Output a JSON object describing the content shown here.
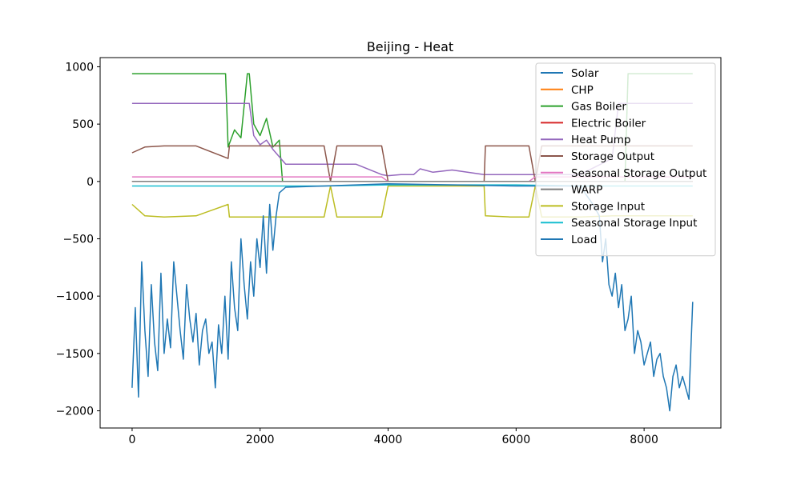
{
  "chart_data": {
    "type": "line",
    "title": "Beijing - Heat",
    "xlabel": "",
    "ylabel": "",
    "xlim": [
      -500,
      9200
    ],
    "ylim": [
      -2150,
      1080
    ],
    "xticks": [
      0,
      2000,
      4000,
      6000,
      8000
    ],
    "xtick_labels": [
      "0",
      "2000",
      "4000",
      "6000",
      "8000"
    ],
    "yticks": [
      1000,
      500,
      0,
      -500,
      -1000,
      -1500,
      -2000
    ],
    "ytick_labels": [
      "1000",
      "500",
      "0",
      "−500",
      "−1000",
      "−1500",
      "−2000"
    ],
    "grid": false,
    "legend_position": "top-right",
    "series": [
      {
        "name": "Solar",
        "color": "#1f77b4",
        "x": [
          0,
          8760
        ],
        "y": [
          0,
          0
        ]
      },
      {
        "name": "CHP",
        "color": "#ff7f0e",
        "x": [
          0,
          8760
        ],
        "y": [
          0,
          0
        ]
      },
      {
        "name": "Gas Boiler",
        "color": "#2ca02c",
        "x": [
          0,
          100,
          200,
          300,
          400,
          500,
          600,
          700,
          800,
          900,
          1000,
          1100,
          1200,
          1300,
          1400,
          1460,
          1500,
          1600,
          1700,
          1800,
          1830,
          1900,
          2000,
          2100,
          2200,
          2300,
          2350,
          7700,
          7750,
          7800,
          7900,
          8000,
          8100,
          8200,
          8300,
          8400,
          8500,
          8600,
          8700,
          8760
        ],
        "y": [
          940,
          940,
          940,
          940,
          940,
          940,
          940,
          940,
          940,
          940,
          940,
          940,
          940,
          940,
          940,
          940,
          300,
          450,
          380,
          940,
          940,
          500,
          400,
          550,
          300,
          360,
          0,
          0,
          940,
          940,
          940,
          940,
          940,
          940,
          940,
          940,
          940,
          940,
          940,
          940
        ]
      },
      {
        "name": "Electric Boiler",
        "color": "#d62728",
        "x": [
          0,
          8760
        ],
        "y": [
          0,
          0
        ]
      },
      {
        "name": "Heat Pump",
        "color": "#9467bd",
        "x": [
          0,
          100,
          200,
          300,
          400,
          500,
          600,
          700,
          800,
          900,
          1000,
          1100,
          1200,
          1300,
          1400,
          1500,
          1600,
          1700,
          1830,
          1900,
          2000,
          2100,
          2200,
          2400,
          3000,
          3500,
          3900,
          4000,
          4200,
          4400,
          4500,
          4700,
          5000,
          5500,
          6000,
          6500,
          7000,
          7500,
          7600,
          7700,
          7800,
          7900,
          8000,
          8100,
          8200,
          8300,
          8400,
          8500,
          8600,
          8700,
          8760
        ],
        "y": [
          680,
          680,
          680,
          680,
          680,
          680,
          680,
          680,
          680,
          680,
          680,
          680,
          680,
          680,
          680,
          680,
          680,
          680,
          680,
          400,
          320,
          360,
          280,
          150,
          150,
          150,
          60,
          50,
          60,
          60,
          110,
          80,
          100,
          60,
          60,
          60,
          60,
          200,
          680,
          680,
          680,
          680,
          680,
          680,
          680,
          680,
          680,
          680,
          680,
          680,
          680
        ]
      },
      {
        "name": "Storage Output",
        "color": "#8c564b",
        "x": [
          0,
          200,
          500,
          1000,
          1500,
          1520,
          2000,
          2500,
          3000,
          3100,
          3200,
          3300,
          3900,
          4000,
          4500,
          5500,
          5520,
          5900,
          6000,
          6200,
          6300,
          6400,
          7000,
          7500,
          8000,
          8500,
          8760
        ],
        "y": [
          250,
          300,
          310,
          310,
          200,
          310,
          310,
          310,
          310,
          0,
          310,
          310,
          310,
          0,
          0,
          0,
          310,
          310,
          310,
          310,
          0,
          310,
          310,
          310,
          310,
          310,
          310
        ]
      },
      {
        "name": "Seasonal Storage Output",
        "color": "#e377c2",
        "x": [
          0,
          1000,
          2000,
          3000,
          3900,
          4000,
          6200,
          6300,
          7000,
          8000,
          8760
        ],
        "y": [
          40,
          40,
          40,
          40,
          40,
          0,
          0,
          40,
          40,
          40,
          40
        ]
      },
      {
        "name": "WARP",
        "color": "#7f7f7f",
        "x": [
          0,
          8760
        ],
        "y": [
          0,
          0
        ]
      },
      {
        "name": "Storage Input",
        "color": "#bcbd22",
        "x": [
          0,
          200,
          500,
          1000,
          1500,
          1520,
          2000,
          2500,
          3000,
          3100,
          3200,
          3300,
          3900,
          4000,
          4500,
          5500,
          5520,
          5900,
          6000,
          6200,
          6300,
          6400,
          7000,
          7500,
          8000,
          8500,
          8760
        ],
        "y": [
          -200,
          -300,
          -310,
          -300,
          -200,
          -310,
          -310,
          -310,
          -310,
          -40,
          -310,
          -310,
          -310,
          -40,
          -40,
          -40,
          -300,
          -310,
          -310,
          -310,
          -40,
          -310,
          -310,
          -300,
          -300,
          -300,
          -300
        ]
      },
      {
        "name": "Seasonal Storage Input",
        "color": "#17becf",
        "x": [
          0,
          1000,
          2000,
          3000,
          4000,
          5000,
          6000,
          7000,
          8000,
          8760
        ],
        "y": [
          -40,
          -40,
          -40,
          -40,
          -30,
          -30,
          -30,
          -40,
          -40,
          -40
        ]
      },
      {
        "name": "Load",
        "color": "#1f77b4",
        "x": [
          0,
          50,
          100,
          150,
          200,
          250,
          300,
          350,
          400,
          450,
          500,
          550,
          600,
          650,
          700,
          750,
          800,
          850,
          900,
          950,
          1000,
          1050,
          1100,
          1150,
          1200,
          1250,
          1300,
          1350,
          1400,
          1450,
          1500,
          1550,
          1600,
          1650,
          1700,
          1750,
          1800,
          1850,
          1900,
          1950,
          2000,
          2050,
          2100,
          2150,
          2200,
          2250,
          2300,
          2400,
          3000,
          4000,
          5000,
          6000,
          7000,
          7200,
          7300,
          7350,
          7400,
          7450,
          7500,
          7550,
          7600,
          7650,
          7700,
          7750,
          7800,
          7850,
          7900,
          7950,
          8000,
          8050,
          8100,
          8150,
          8200,
          8250,
          8300,
          8350,
          8400,
          8450,
          8500,
          8550,
          8600,
          8650,
          8700,
          8760
        ],
        "y": [
          -1800,
          -1100,
          -1880,
          -700,
          -1300,
          -1700,
          -900,
          -1400,
          -1650,
          -800,
          -1500,
          -1200,
          -1450,
          -700,
          -1000,
          -1300,
          -1550,
          -900,
          -1200,
          -1400,
          -1150,
          -1600,
          -1300,
          -1200,
          -1500,
          -1400,
          -1800,
          -1250,
          -1500,
          -1000,
          -1550,
          -700,
          -1100,
          -1300,
          -500,
          -900,
          -1200,
          -700,
          -1000,
          -500,
          -750,
          -300,
          -800,
          -200,
          -600,
          -300,
          -100,
          -50,
          -40,
          -20,
          -30,
          -40,
          -40,
          -200,
          -300,
          -700,
          -500,
          -900,
          -1000,
          -800,
          -1100,
          -900,
          -1300,
          -1200,
          -1000,
          -1500,
          -1300,
          -1400,
          -1600,
          -1500,
          -1400,
          -1700,
          -1550,
          -1500,
          -1700,
          -1800,
          -2000,
          -1700,
          -1600,
          -1800,
          -1700,
          -1800,
          -1900,
          -1050
        ]
      }
    ]
  }
}
